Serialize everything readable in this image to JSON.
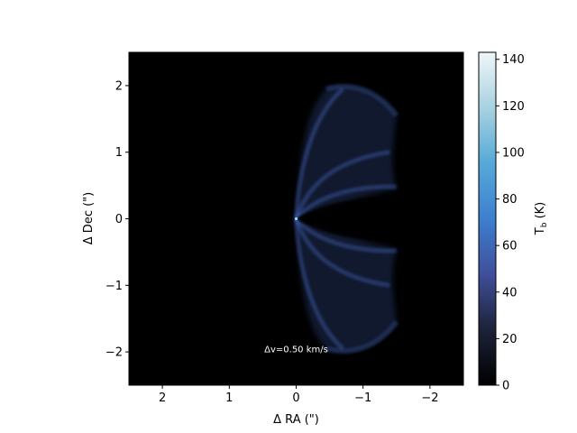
{
  "chart_data": {
    "type": "heatmap",
    "title": "",
    "xlabel": "Δ RA (\")",
    "ylabel": "Δ Dec (\")",
    "xlim": [
      2.5,
      -2.5
    ],
    "ylim": [
      -2.5,
      2.5
    ],
    "x_ticks": [
      {
        "value": 2,
        "label": "2"
      },
      {
        "value": 1,
        "label": "1"
      },
      {
        "value": 0,
        "label": "0"
      },
      {
        "value": -1,
        "label": "−1"
      },
      {
        "value": -2,
        "label": "−2"
      }
    ],
    "y_ticks": [
      {
        "value": 2,
        "label": "2"
      },
      {
        "value": 1,
        "label": "1"
      },
      {
        "value": 0,
        "label": "0"
      },
      {
        "value": -1,
        "label": "−1"
      },
      {
        "value": -2,
        "label": "−2"
      }
    ],
    "colorbar": {
      "label_base": "T",
      "label_sub": "b",
      "label_unit": " (K)",
      "range": [
        0,
        143
      ],
      "colors": [
        "#000000",
        "#1c2238",
        "#3f4f9a",
        "#3e7fd0",
        "#56a9d8",
        "#a8d2e0",
        "#f0f6f8"
      ],
      "ticks": [
        {
          "value": 0,
          "label": "0"
        },
        {
          "value": 20,
          "label": "20"
        },
        {
          "value": 40,
          "label": "40"
        },
        {
          "value": 60,
          "label": "60"
        },
        {
          "value": 80,
          "label": "80"
        },
        {
          "value": 100,
          "label": "100"
        },
        {
          "value": 120,
          "label": "120"
        },
        {
          "value": 140,
          "label": "140"
        }
      ]
    },
    "annotation": {
      "text": "Δv=0.50 km/s",
      "x": 0,
      "y": -1.95
    },
    "background_color": "#000000",
    "emission_color": "#4a6fd0"
  }
}
